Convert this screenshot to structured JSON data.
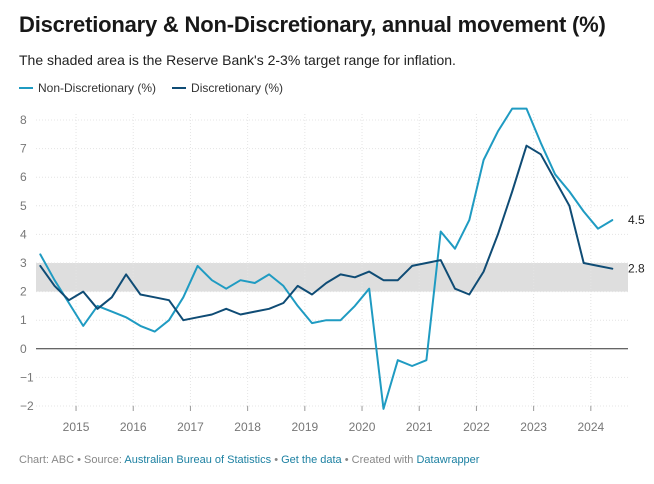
{
  "title": "Discretionary & Non-Discretionary, annual movement (%)",
  "subtitle": "The shaded area is the Reserve Bank's 2-3% target range for inflation.",
  "colors": {
    "non_discretionary": "#1f9bc2",
    "discretionary": "#0f4c75",
    "band": "#dedede",
    "grid": "#e4e4e4"
  },
  "footer": {
    "chart_by": "Chart: ABC",
    "source_prefix": "Source:",
    "source_link": "Australian Bureau of Statistics",
    "get_data": "Get the data",
    "created_prefix": "Created with",
    "created_link": "Datawrapper"
  },
  "chart_data": {
    "type": "line",
    "title": "Discretionary & Non-Discretionary, annual movement (%)",
    "xlabel": "",
    "ylabel": "",
    "ylim": [
      -2,
      8.5
    ],
    "xlim": [
      2014.3,
      2024.65
    ],
    "yticks": [
      8,
      7,
      6,
      5,
      4,
      3,
      2,
      1,
      0,
      -1,
      -2
    ],
    "ytick_labels": [
      "8",
      "7",
      "6",
      "5",
      "4",
      "3",
      "2",
      "1",
      "0",
      "−1",
      "−2"
    ],
    "xticks": [
      "2015",
      "2016",
      "2017",
      "2018",
      "2019",
      "2020",
      "2021",
      "2022",
      "2023",
      "2024"
    ],
    "target_band": [
      2,
      3
    ],
    "x": [
      2014.375,
      2014.625,
      2014.875,
      2015.125,
      2015.375,
      2015.625,
      2015.875,
      2016.125,
      2016.375,
      2016.625,
      2016.875,
      2017.125,
      2017.375,
      2017.625,
      2017.875,
      2018.125,
      2018.375,
      2018.625,
      2018.875,
      2019.125,
      2019.375,
      2019.625,
      2019.875,
      2020.125,
      2020.375,
      2020.625,
      2020.875,
      2021.125,
      2021.375,
      2021.625,
      2021.875,
      2022.125,
      2022.375,
      2022.625,
      2022.875,
      2023.125,
      2023.375,
      2023.625,
      2023.875,
      2024.125,
      2024.375
    ],
    "series": [
      {
        "name": "Non-Discretionary (%)",
        "values": [
          3.3,
          2.4,
          1.6,
          0.8,
          1.5,
          1.3,
          1.1,
          0.8,
          0.6,
          1.0,
          1.8,
          2.9,
          2.4,
          2.1,
          2.4,
          2.3,
          2.6,
          2.2,
          1.5,
          0.9,
          1.0,
          1.0,
          1.5,
          2.1,
          -2.1,
          -0.4,
          -0.6,
          -0.4,
          4.1,
          3.5,
          4.5,
          6.6,
          7.6,
          8.4,
          8.4,
          7.2,
          6.1,
          5.5,
          4.8,
          4.2,
          4.5
        ],
        "end_label": "4.5"
      },
      {
        "name": "Discretionary (%)",
        "values": [
          2.9,
          2.2,
          1.7,
          2.0,
          1.4,
          1.8,
          2.6,
          1.9,
          1.8,
          1.7,
          1.0,
          1.1,
          1.2,
          1.4,
          1.2,
          1.3,
          1.4,
          1.6,
          2.2,
          1.9,
          2.3,
          2.6,
          2.5,
          2.7,
          2.4,
          2.4,
          2.9,
          3.0,
          3.1,
          2.1,
          1.9,
          2.7,
          4.0,
          5.5,
          7.1,
          6.8,
          5.9,
          5.0,
          3.0,
          2.9,
          2.8
        ],
        "end_label": "2.8"
      }
    ]
  }
}
